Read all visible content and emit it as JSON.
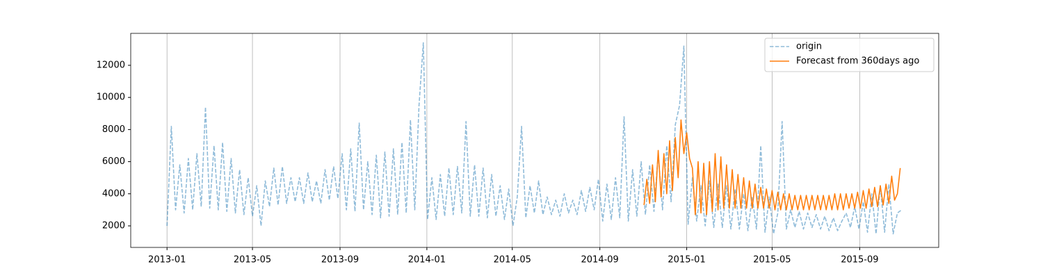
{
  "chart_data": {
    "type": "line",
    "xlim": [
      -51,
      1084
    ],
    "xticks": [
      {
        "value": 0,
        "label": "2013-01"
      },
      {
        "value": 120,
        "label": "2013-05"
      },
      {
        "value": 243,
        "label": "2013-09"
      },
      {
        "value": 365,
        "label": "2014-01"
      },
      {
        "value": 485,
        "label": "2014-05"
      },
      {
        "value": 608,
        "label": "2014-09"
      },
      {
        "value": 730,
        "label": "2015-01"
      },
      {
        "value": 850,
        "label": "2015-05"
      },
      {
        "value": 973,
        "label": "2015-09"
      }
    ],
    "ylim": [
      658,
      13990
    ],
    "yticks": [
      2000,
      4000,
      6000,
      8000,
      10000,
      12000
    ],
    "x_grid": true,
    "legend": "upper right",
    "series": [
      {
        "name": "origin",
        "color": "#1f77b4",
        "dashed": true,
        "opacity": 0.5,
        "x": [
          0,
          6,
          12,
          18,
          24,
          30,
          36,
          42,
          48,
          54,
          60,
          66,
          72,
          78,
          84,
          90,
          96,
          102,
          108,
          114,
          120,
          126,
          132,
          138,
          144,
          150,
          156,
          162,
          168,
          174,
          180,
          186,
          192,
          198,
          204,
          210,
          216,
          222,
          228,
          234,
          240,
          246,
          252,
          258,
          264,
          270,
          276,
          282,
          288,
          294,
          300,
          306,
          312,
          318,
          324,
          330,
          336,
          342,
          348,
          354,
          360,
          366,
          372,
          378,
          384,
          390,
          396,
          402,
          408,
          414,
          420,
          426,
          432,
          438,
          444,
          450,
          456,
          462,
          468,
          474,
          480,
          486,
          492,
          498,
          504,
          510,
          516,
          522,
          528,
          534,
          540,
          546,
          552,
          558,
          564,
          570,
          576,
          582,
          588,
          594,
          600,
          606,
          612,
          618,
          624,
          630,
          636,
          642,
          648,
          654,
          660,
          666,
          672,
          678,
          684,
          690,
          696,
          702,
          708,
          714,
          720,
          726,
          732,
          738,
          744,
          750,
          756,
          762,
          768,
          774,
          780,
          786,
          792,
          798,
          804,
          810,
          816,
          822,
          828,
          834,
          840,
          846,
          852,
          858,
          864,
          870,
          876,
          882,
          888,
          894,
          900,
          906,
          912,
          918,
          924,
          930,
          936,
          942,
          948,
          954,
          960,
          966,
          972,
          978,
          984,
          990,
          996,
          1002,
          1008,
          1014,
          1020,
          1026,
          1032
        ],
        "values": [
          2000,
          8200,
          3000,
          5800,
          2800,
          6200,
          3000,
          6500,
          3200,
          9400,
          3100,
          7000,
          3000,
          7200,
          2900,
          6200,
          2800,
          5500,
          2700,
          5000,
          2600,
          4500,
          2000,
          4800,
          3200,
          5600,
          3300,
          5700,
          3400,
          5000,
          3500,
          5000,
          3400,
          5300,
          3500,
          4800,
          3400,
          5500,
          3600,
          5700,
          3700,
          6500,
          3000,
          6800,
          2900,
          8400,
          3000,
          6000,
          2700,
          6400,
          2500,
          6600,
          2600,
          6800,
          2700,
          7200,
          2800,
          8600,
          3000,
          9500,
          13400,
          2400,
          5000,
          2400,
          5200,
          2600,
          5600,
          2700,
          5700,
          2800,
          8500,
          2600,
          5800,
          2600,
          5600,
          2500,
          5200,
          2600,
          4500,
          2400,
          4300,
          2000,
          3800,
          8200,
          2500,
          4500,
          2800,
          4800,
          2700,
          3800,
          2700,
          3600,
          2600,
          4000,
          2800,
          3600,
          2700,
          4200,
          2900,
          4400,
          3000,
          4900,
          2300,
          4600,
          2400,
          5000,
          2500,
          8800,
          2300,
          5500,
          2600,
          6000,
          2700,
          5800,
          2900,
          6500,
          3000,
          7000,
          3500,
          8300,
          9500,
          13200,
          2100,
          5000,
          2300,
          4500,
          2000,
          4800,
          1900,
          4600,
          1900,
          4500,
          1800,
          4300,
          1800,
          4000,
          1700,
          3800,
          1800,
          7000,
          1600,
          3800,
          1500,
          2800,
          8500,
          1800,
          3000,
          1900,
          2900,
          1800,
          2800,
          1900,
          2700,
          1800,
          2600,
          1700,
          2500,
          1700,
          2300,
          2800,
          1900,
          3200,
          1800,
          3500,
          1600,
          4000,
          1500,
          4500,
          1600,
          4600,
          1500,
          2800,
          3000
        ]
      },
      {
        "name": "Forecast from 360days ago",
        "color": "#ff7f0e",
        "dashed": false,
        "opacity": 1,
        "x": [
          670,
          674,
          678,
          682,
          686,
          690,
          694,
          698,
          702,
          706,
          710,
          714,
          718,
          722,
          726,
          730,
          734,
          738,
          742,
          746,
          750,
          754,
          758,
          762,
          766,
          770,
          774,
          778,
          782,
          786,
          790,
          794,
          798,
          802,
          806,
          810,
          814,
          818,
          822,
          826,
          830,
          834,
          838,
          842,
          846,
          850,
          854,
          858,
          862,
          866,
          870,
          874,
          878,
          882,
          886,
          890,
          894,
          898,
          902,
          906,
          910,
          914,
          918,
          922,
          926,
          930,
          934,
          938,
          942,
          946,
          950,
          954,
          958,
          962,
          966,
          970,
          974,
          978,
          982,
          986,
          990,
          994,
          998,
          1002,
          1006,
          1010,
          1014,
          1018,
          1022,
          1026,
          1030
        ],
        "values": [
          3300,
          4900,
          3400,
          5800,
          3500,
          6700,
          3800,
          6500,
          4000,
          7300,
          4200,
          7500,
          5000,
          8600,
          6500,
          7800,
          6200,
          5600,
          2700,
          6000,
          2800,
          5900,
          2700,
          6000,
          2900,
          6500,
          3000,
          6300,
          3100,
          5800,
          3100,
          5500,
          3100,
          5200,
          3100,
          5000,
          3100,
          4800,
          3100,
          4600,
          3100,
          4400,
          3100,
          4300,
          3100,
          4200,
          3000,
          4100,
          3000,
          4000,
          3000,
          4000,
          3000,
          3900,
          3000,
          3900,
          3000,
          3900,
          3000,
          3900,
          3000,
          3900,
          3000,
          3900,
          3000,
          3900,
          3000,
          4000,
          3000,
          4000,
          3000,
          4000,
          3100,
          4000,
          3100,
          4100,
          3100,
          4200,
          3100,
          4300,
          3200,
          4400,
          3200,
          4500,
          3300,
          4600,
          3400,
          5100,
          3600,
          4000,
          5600
        ]
      }
    ]
  }
}
